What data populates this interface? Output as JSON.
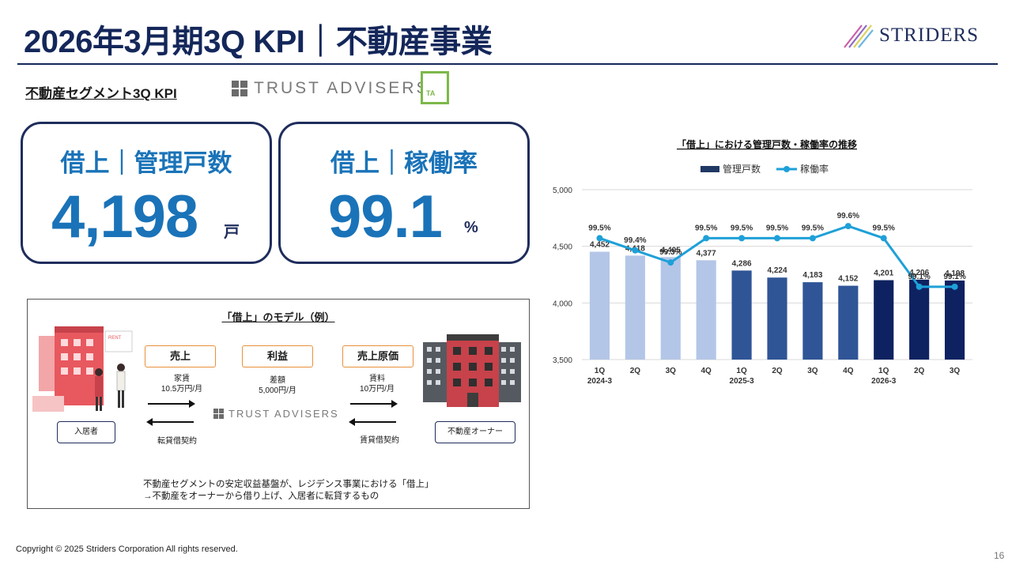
{
  "header": {
    "title": "2026年3月期3Q KPI｜不動産事業",
    "logo_text": "STRIDERS"
  },
  "segment": {
    "label": "不動産セグメント3Q KPI",
    "brand": "TRUST ADVISERS",
    "brand_mark": "TA"
  },
  "kpis": [
    {
      "label": "借上｜管理戸数",
      "value": "4,198",
      "unit": "戸"
    },
    {
      "label": "借上｜稼働率",
      "value": "99.1",
      "unit": "%"
    }
  ],
  "model": {
    "title": "「借上」のモデル（例）",
    "pills": {
      "sales": "売上",
      "profit": "利益",
      "cost": "売上原価"
    },
    "rent_in": "家賃\n10.5万円/月",
    "margin": "差額\n5,000円/月",
    "rent_out": "賃料\n10万円/月",
    "tenant": "入居者",
    "owner": "不動産オーナー",
    "sublease_contract": "転貸借契約",
    "lease_contract": "賃貸借契約",
    "brand": "TRUST ADVISERS",
    "note_line1": "不動産セグメントの安定収益基盤が、レジデンス事業における「借上」",
    "note_line2": "→不動産をオーナーから借り上げ、入居者に転貸するもの",
    "icons": {
      "left": "building-with-people-illustration",
      "right": "apartment-buildings-illustration"
    }
  },
  "chart_data": {
    "type": "bar",
    "title": "「借上」における管理戸数・稼働率の推移",
    "categories": [
      "1Q",
      "2Q",
      "3Q",
      "4Q",
      "1Q",
      "2Q",
      "3Q",
      "4Q",
      "1Q",
      "2Q",
      "3Q"
    ],
    "fiscal_years": [
      {
        "label": "2024-3",
        "start_index": 0
      },
      {
        "label": "2025-3",
        "start_index": 4
      },
      {
        "label": "2026-3",
        "start_index": 8
      }
    ],
    "series": [
      {
        "name": "管理戸数",
        "type": "bar",
        "values": [
          4452,
          4418,
          4405,
          4377,
          4286,
          4224,
          4183,
          4152,
          4201,
          4206,
          4198
        ],
        "labels": [
          "4,452",
          "4,418",
          "4,405",
          "4,377",
          "4,286",
          "4,224",
          "4,183",
          "4,152",
          "4,201",
          "4,206",
          "4,198"
        ]
      },
      {
        "name": "稼働率",
        "type": "line",
        "values": [
          99.5,
          99.4,
          99.3,
          99.5,
          99.5,
          99.5,
          99.5,
          99.6,
          99.5,
          99.1,
          99.1
        ],
        "labels": [
          "99.5%",
          "99.4%",
          "99.3%",
          "99.5%",
          "99.5%",
          "99.5%",
          "99.5%",
          "99.6%",
          "99.5%",
          "99.1%",
          "99.1%"
        ]
      }
    ],
    "ylim": [
      3500,
      5000
    ],
    "yticks": [
      "3,500",
      "4,000",
      "4,500",
      "5,000"
    ],
    "ytick_values": [
      3500,
      4000,
      4500,
      5000
    ],
    "line_range": [
      98.5,
      99.9
    ],
    "bar_colors": [
      "#b4c6e7",
      "#b4c6e7",
      "#b4c6e7",
      "#b4c6e7",
      "#2f5597",
      "#2f5597",
      "#2f5597",
      "#2f5597",
      "#0e2261",
      "#0e2261",
      "#0e2261"
    ],
    "legend_bar_color": "#1f3864",
    "line_color": "#1ea0d8",
    "legend_position": "top-center"
  },
  "footer": {
    "copyright": "Copyright © 2025 Striders Corporation All rights reserved.",
    "page": "16"
  }
}
